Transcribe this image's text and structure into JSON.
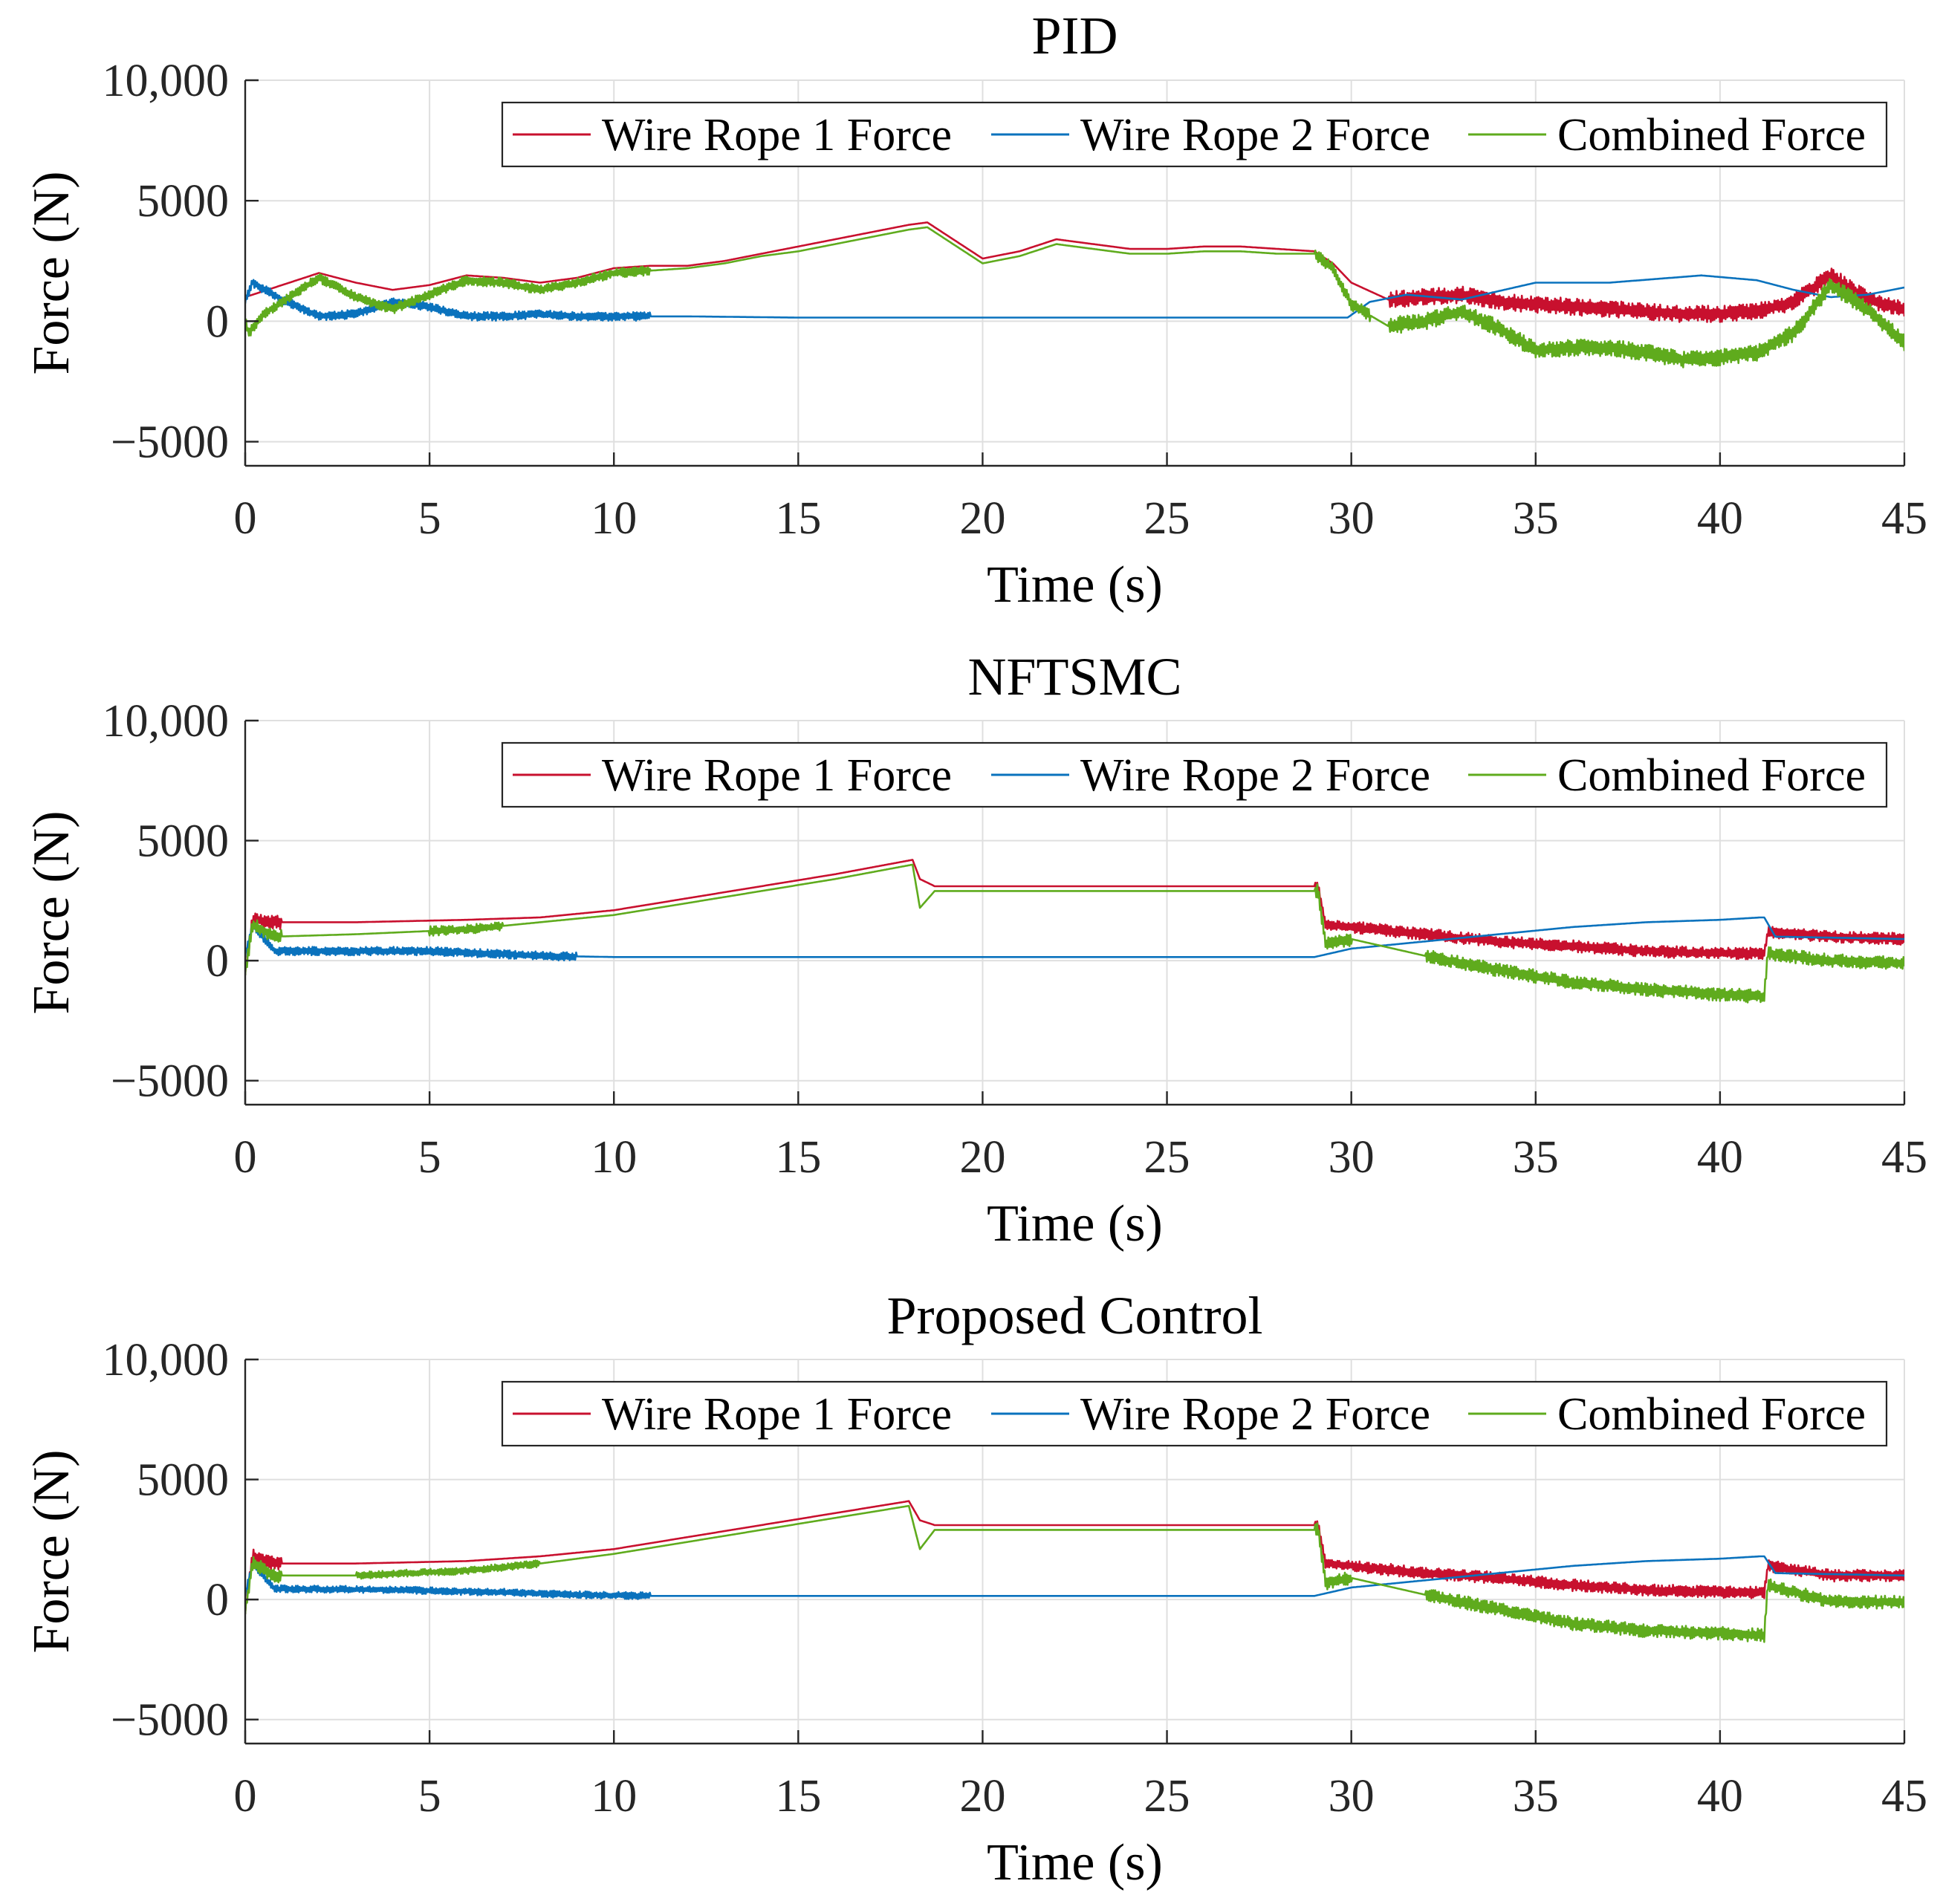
{
  "colors": {
    "rope1": "#c8102e",
    "rope2": "#0a72bd",
    "combined": "#5fab1d"
  },
  "chart_data": [
    {
      "type": "line",
      "title": "PID",
      "xlabel": "Time (s)",
      "ylabel": "Force (N)",
      "xlim": [
        0,
        45
      ],
      "ylim": [
        -6000,
        10000
      ],
      "xticks": [
        0,
        5,
        10,
        15,
        20,
        25,
        30,
        35,
        40,
        45
      ],
      "xtick_labels": [
        "0",
        "5",
        "10",
        "15",
        "20",
        "25",
        "30",
        "35",
        "40",
        "45"
      ],
      "yticks": [
        -5000,
        0,
        5000,
        10000
      ],
      "ytick_labels": [
        "−5000",
        "0",
        "5000",
        "10,000"
      ],
      "grid": true,
      "legend": "top-right, horizontal",
      "series": [
        {
          "name": "Wire Rope 1 Force",
          "color": "rope1",
          "x": [
            0,
            1,
            2,
            3,
            4,
            5,
            6,
            7,
            8,
            9,
            10,
            11,
            12,
            13,
            14,
            15,
            16,
            17,
            18,
            18.5,
            19,
            20,
            21,
            22,
            23,
            24,
            25,
            26,
            27,
            28,
            29,
            29.5,
            30,
            31,
            32,
            33,
            34,
            35,
            36,
            37,
            38,
            39,
            40,
            41,
            42,
            43,
            44,
            45
          ],
          "y": [
            1000,
            1500,
            2000,
            1600,
            1300,
            1500,
            1900,
            1800,
            1600,
            1800,
            2200,
            2300,
            2300,
            2500,
            2800,
            3100,
            3400,
            3700,
            4000,
            4100,
            3600,
            2600,
            2900,
            3400,
            3200,
            3000,
            3000,
            3100,
            3100,
            3000,
            2900,
            2400,
            1600,
            900,
            1000,
            1100,
            800,
            700,
            600,
            500,
            400,
            300,
            300,
            400,
            800,
            1900,
            900,
            500
          ],
          "noise_bands": [
            {
              "from": 31,
              "to": 45,
              "amplitude": 350
            }
          ]
        },
        {
          "name": "Wire Rope 2 Force",
          "color": "rope2",
          "x": [
            0,
            0.2,
            1,
            2,
            3,
            4,
            5,
            6,
            7,
            8,
            9,
            10,
            12,
            15,
            20,
            25,
            29.9,
            30.5,
            31.5,
            33,
            35,
            37,
            39.5,
            41,
            42,
            43,
            44,
            45
          ],
          "y": [
            800,
            1600,
            900,
            200,
            300,
            800,
            600,
            200,
            200,
            300,
            200,
            200,
            200,
            150,
            150,
            150,
            150,
            800,
            1100,
            900,
            1600,
            1600,
            1900,
            1700,
            1300,
            1000,
            1100,
            1400
          ],
          "noise_bands": [
            {
              "from": 0,
              "to": 11,
              "amplitude": 180
            }
          ]
        },
        {
          "name": "Combined Force",
          "color": "combined",
          "x": [
            0,
            0.1,
            0.5,
            2,
            3,
            4,
            5,
            6,
            7,
            8,
            9,
            10,
            11,
            12,
            13,
            14,
            15,
            16,
            17,
            18,
            18.5,
            19,
            20,
            21,
            22,
            23,
            24,
            25,
            26,
            27,
            28,
            29,
            29.5,
            30,
            31,
            32,
            33,
            34,
            35,
            36,
            37,
            38,
            39,
            40,
            41,
            42,
            43,
            44,
            45
          ],
          "y": [
            0,
            -500,
            300,
            1800,
            1000,
            500,
            1100,
            1700,
            1600,
            1300,
            1600,
            2000,
            2100,
            2200,
            2400,
            2700,
            2900,
            3200,
            3500,
            3800,
            3900,
            3400,
            2400,
            2700,
            3200,
            3000,
            2800,
            2800,
            2900,
            2900,
            2800,
            2800,
            2200,
            700,
            -200,
            0,
            400,
            -300,
            -1200,
            -1100,
            -1100,
            -1300,
            -1600,
            -1500,
            -1300,
            -500,
            1500,
            500,
            -900
          ],
          "noise_bands": [
            {
              "from": 0,
              "to": 11,
              "amplitude": 200
            },
            {
              "from": 29,
              "to": 30.5,
              "amplitude": 250
            },
            {
              "from": 31,
              "to": 45,
              "amplitude": 350
            }
          ]
        }
      ]
    },
    {
      "type": "line",
      "title": "NFTSMC",
      "xlabel": "Time (s)",
      "ylabel": "Force (N)",
      "xlim": [
        0,
        45
      ],
      "ylim": [
        -6000,
        10000
      ],
      "xticks": [
        0,
        5,
        10,
        15,
        20,
        25,
        30,
        35,
        40,
        45
      ],
      "xtick_labels": [
        "0",
        "5",
        "10",
        "15",
        "20",
        "25",
        "30",
        "35",
        "40",
        "45"
      ],
      "yticks": [
        -5000,
        0,
        5000,
        10000
      ],
      "ytick_labels": [
        "−5000",
        "0",
        "5000",
        "10,000"
      ],
      "grid": true,
      "legend": "top-right, horizontal",
      "series": [
        {
          "name": "Wire Rope 1 Force",
          "color": "rope1",
          "x": [
            0,
            0.2,
            0.8,
            3,
            6,
            8,
            10,
            12,
            14,
            16,
            18.1,
            18.3,
            18.7,
            20,
            25,
            29.1,
            29.3,
            30,
            32,
            34,
            36,
            38,
            40,
            41.2,
            41.3,
            43,
            45
          ],
          "y": [
            -500,
            1700,
            1600,
            1600,
            1700,
            1800,
            2100,
            2600,
            3100,
            3600,
            4200,
            3400,
            3100,
            3100,
            3100,
            3100,
            1500,
            1400,
            1100,
            800,
            600,
            400,
            300,
            300,
            1200,
            1000,
            900
          ],
          "noise_bands": [
            {
              "from": 0,
              "to": 1,
              "amplitude": 300
            },
            {
              "from": 29,
              "to": 30,
              "amplitude": 200
            },
            {
              "from": 30,
              "to": 45,
              "amplitude": 250
            }
          ]
        },
        {
          "name": "Wire Rope 2 Force",
          "color": "rope2",
          "x": [
            0,
            0.2,
            0.8,
            5,
            6.5,
            8,
            10,
            15,
            20,
            25,
            29,
            30,
            32,
            34,
            36,
            38,
            40,
            41.1,
            41.2,
            41.5,
            45
          ],
          "y": [
            200,
            1500,
            400,
            400,
            300,
            200,
            150,
            150,
            150,
            150,
            150,
            500,
            800,
            1100,
            1400,
            1600,
            1700,
            1800,
            1800,
            1000,
            900
          ],
          "noise_bands": [
            {
              "from": 0,
              "to": 9,
              "amplitude": 180
            }
          ]
        },
        {
          "name": "Combined Force",
          "color": "combined",
          "x": [
            0,
            0.2,
            0.8,
            3,
            6,
            8,
            10,
            12,
            14,
            16,
            18.1,
            18.3,
            18.7,
            20,
            25,
            29.1,
            29.3,
            30,
            32,
            34,
            36,
            38,
            40,
            41.2,
            41.3,
            43,
            45
          ],
          "y": [
            -500,
            1500,
            1000,
            1100,
            1300,
            1600,
            1900,
            2400,
            2900,
            3400,
            4000,
            2200,
            2900,
            2900,
            2900,
            2900,
            700,
            900,
            200,
            -400,
            -900,
            -1200,
            -1400,
            -1500,
            300,
            0,
            -100
          ],
          "noise_bands": [
            {
              "from": 0,
              "to": 1,
              "amplitude": 300
            },
            {
              "from": 5,
              "to": 7,
              "amplitude": 200
            },
            {
              "from": 29,
              "to": 30,
              "amplitude": 300
            },
            {
              "from": 32,
              "to": 45,
              "amplitude": 280
            }
          ]
        }
      ]
    },
    {
      "type": "line",
      "title": "Proposed Control",
      "xlabel": "Time (s)",
      "ylabel": "Force (N)",
      "xlim": [
        0,
        45
      ],
      "ylim": [
        -6000,
        10000
      ],
      "xticks": [
        0,
        5,
        10,
        15,
        20,
        25,
        30,
        35,
        40,
        45
      ],
      "xtick_labels": [
        "0",
        "5",
        "10",
        "15",
        "20",
        "25",
        "30",
        "35",
        "40",
        "45"
      ],
      "yticks": [
        -5000,
        0,
        5000,
        10000
      ],
      "ytick_labels": [
        "−5000",
        "0",
        "5000",
        "10,000"
      ],
      "grid": true,
      "legend": "top-right, horizontal",
      "series": [
        {
          "name": "Wire Rope 1 Force",
          "color": "rope1",
          "x": [
            0,
            0.2,
            0.8,
            3,
            6,
            8,
            10,
            12,
            14,
            16,
            18,
            18.3,
            18.7,
            20,
            25,
            29.1,
            29.3,
            30,
            32,
            34,
            36,
            38,
            40,
            41.2,
            41.3,
            43,
            45
          ],
          "y": [
            -500,
            1800,
            1500,
            1500,
            1600,
            1800,
            2100,
            2600,
            3100,
            3600,
            4100,
            3300,
            3100,
            3100,
            3100,
            3100,
            1500,
            1400,
            1100,
            900,
            600,
            400,
            300,
            300,
            1400,
            1000,
            1000
          ],
          "noise_bands": [
            {
              "from": 0,
              "to": 1,
              "amplitude": 300
            },
            {
              "from": 29,
              "to": 30,
              "amplitude": 200
            },
            {
              "from": 30,
              "to": 45,
              "amplitude": 250
            }
          ]
        },
        {
          "name": "Wire Rope 2 Force",
          "color": "rope2",
          "x": [
            0,
            0.2,
            0.8,
            4,
            7,
            9,
            11,
            15,
            20,
            25,
            29,
            30,
            32,
            34,
            36,
            38,
            40,
            41.1,
            41.2,
            41.5,
            45
          ],
          "y": [
            200,
            1500,
            450,
            400,
            300,
            200,
            150,
            150,
            150,
            150,
            150,
            500,
            800,
            1100,
            1400,
            1600,
            1700,
            1800,
            1800,
            1100,
            1000
          ],
          "noise_bands": [
            {
              "from": 0,
              "to": 11,
              "amplitude": 150
            }
          ]
        },
        {
          "name": "Combined Force",
          "color": "combined",
          "x": [
            0,
            0.2,
            0.8,
            3,
            6,
            8,
            10,
            12,
            14,
            16,
            18,
            18.3,
            18.7,
            20,
            25,
            29.1,
            29.3,
            30,
            32,
            34,
            36,
            38,
            40,
            41.2,
            41.3,
            43,
            45
          ],
          "y": [
            -500,
            1500,
            1000,
            1000,
            1200,
            1500,
            1900,
            2400,
            2900,
            3400,
            3900,
            2100,
            2900,
            2900,
            2900,
            2900,
            700,
            900,
            200,
            -400,
            -1000,
            -1300,
            -1400,
            -1500,
            600,
            -100,
            -100
          ],
          "noise_bands": [
            {
              "from": 0,
              "to": 1,
              "amplitude": 300
            },
            {
              "from": 3,
              "to": 8,
              "amplitude": 150
            },
            {
              "from": 29,
              "to": 30,
              "amplitude": 300
            },
            {
              "from": 32,
              "to": 45,
              "amplitude": 280
            }
          ]
        }
      ]
    }
  ]
}
